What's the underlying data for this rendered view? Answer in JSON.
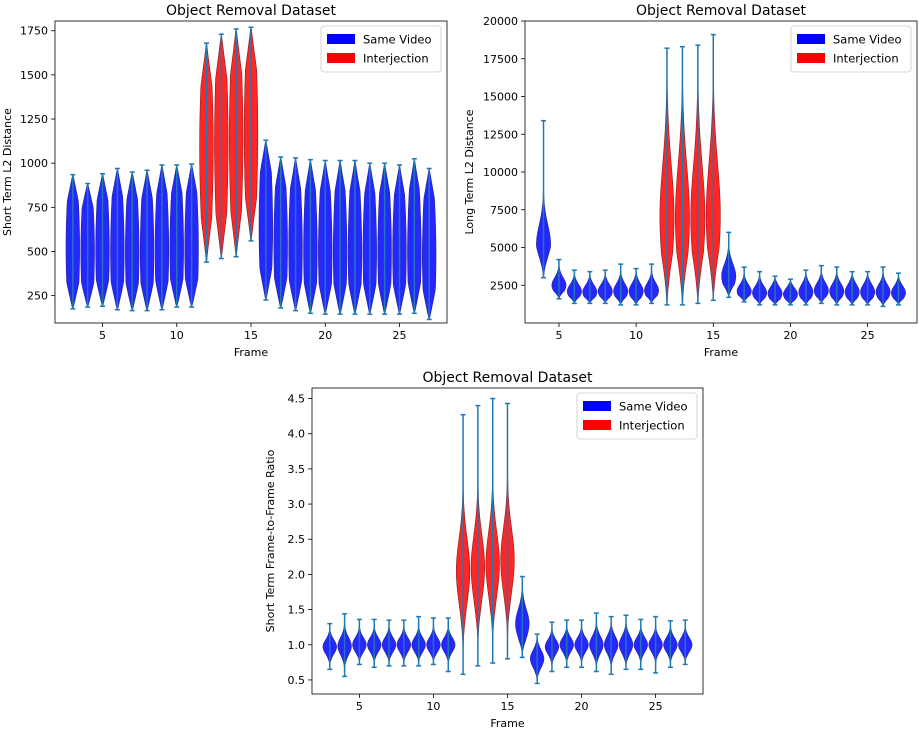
{
  "chart_data": [
    {
      "type": "violin",
      "title": "Object Removal Dataset",
      "xlabel": "Frame",
      "ylabel": "Short Term L2 Distance",
      "xlim": [
        1.8,
        28.2
      ],
      "ylim": [
        95,
        1805
      ],
      "xticks": [
        5,
        10,
        15,
        20,
        25
      ],
      "yticks": [
        250,
        500,
        750,
        1000,
        1250,
        1500,
        1750
      ],
      "legend": {
        "position": "top-right",
        "entries": [
          {
            "label": "Same Video",
            "color": "#0000ff"
          },
          {
            "label": "Interjection",
            "color": "#ff0000"
          }
        ]
      },
      "series": [
        {
          "frame": 3,
          "min": 175,
          "max": 935,
          "center": 520,
          "spread": 420,
          "color": "blue"
        },
        {
          "frame": 4,
          "min": 185,
          "max": 885,
          "center": 500,
          "spread": 400,
          "color": "blue"
        },
        {
          "frame": 5,
          "min": 190,
          "max": 940,
          "center": 510,
          "spread": 420,
          "color": "blue"
        },
        {
          "frame": 6,
          "min": 170,
          "max": 970,
          "center": 500,
          "spread": 440,
          "color": "blue"
        },
        {
          "frame": 7,
          "min": 165,
          "max": 950,
          "center": 500,
          "spread": 430,
          "color": "blue"
        },
        {
          "frame": 8,
          "min": 165,
          "max": 960,
          "center": 500,
          "spread": 430,
          "color": "blue"
        },
        {
          "frame": 9,
          "min": 170,
          "max": 990,
          "center": 510,
          "spread": 440,
          "color": "blue"
        },
        {
          "frame": 10,
          "min": 185,
          "max": 990,
          "center": 520,
          "spread": 440,
          "color": "blue"
        },
        {
          "frame": 11,
          "min": 185,
          "max": 995,
          "center": 520,
          "spread": 440,
          "color": "blue"
        },
        {
          "frame": 12,
          "min": 440,
          "max": 1680,
          "center": 1090,
          "spread": 560,
          "color": "red"
        },
        {
          "frame": 13,
          "min": 460,
          "max": 1730,
          "center": 1120,
          "spread": 600,
          "color": "red"
        },
        {
          "frame": 14,
          "min": 470,
          "max": 1760,
          "center": 1140,
          "spread": 600,
          "color": "red"
        },
        {
          "frame": 15,
          "min": 560,
          "max": 1770,
          "center": 1170,
          "spread": 580,
          "color": "red"
        },
        {
          "frame": 16,
          "min": 225,
          "max": 1130,
          "center": 640,
          "spread": 480,
          "color": "blue"
        },
        {
          "frame": 17,
          "min": 180,
          "max": 1035,
          "center": 540,
          "spread": 460,
          "color": "blue"
        },
        {
          "frame": 18,
          "min": 165,
          "max": 1030,
          "center": 520,
          "spread": 450,
          "color": "blue"
        },
        {
          "frame": 19,
          "min": 150,
          "max": 1020,
          "center": 510,
          "spread": 450,
          "color": "blue"
        },
        {
          "frame": 20,
          "min": 145,
          "max": 1015,
          "center": 500,
          "spread": 450,
          "color": "blue"
        },
        {
          "frame": 21,
          "min": 145,
          "max": 1015,
          "center": 500,
          "spread": 450,
          "color": "blue"
        },
        {
          "frame": 22,
          "min": 145,
          "max": 1015,
          "center": 500,
          "spread": 450,
          "color": "blue"
        },
        {
          "frame": 23,
          "min": 145,
          "max": 1000,
          "center": 500,
          "spread": 440,
          "color": "blue"
        },
        {
          "frame": 24,
          "min": 145,
          "max": 1000,
          "center": 500,
          "spread": 440,
          "color": "blue"
        },
        {
          "frame": 25,
          "min": 145,
          "max": 990,
          "center": 500,
          "spread": 430,
          "color": "blue"
        },
        {
          "frame": 26,
          "min": 150,
          "max": 1025,
          "center": 500,
          "spread": 450,
          "color": "blue"
        },
        {
          "frame": 27,
          "min": 115,
          "max": 970,
          "center": 480,
          "spread": 450,
          "color": "blue"
        }
      ]
    },
    {
      "type": "violin",
      "title": "Object Removal Dataset",
      "xlabel": "Frame",
      "ylabel": "Long Term L2 Distance",
      "xlim": [
        2.8,
        28.2
      ],
      "ylim": [
        0,
        20000
      ],
      "xticks": [
        5,
        10,
        15,
        20,
        25
      ],
      "yticks": [
        2500,
        5000,
        7500,
        10000,
        12500,
        15000,
        17500,
        20000
      ],
      "legend": {
        "position": "top-right",
        "entries": [
          {
            "label": "Same Video",
            "color": "#0000ff"
          },
          {
            "label": "Interjection",
            "color": "#ff0000"
          }
        ]
      },
      "series": [
        {
          "frame": 4,
          "min": 3000,
          "max": 13400,
          "center": 5200,
          "spread": 1300,
          "color": "blue"
        },
        {
          "frame": 5,
          "min": 1600,
          "max": 4200,
          "center": 2500,
          "spread": 500,
          "color": "blue"
        },
        {
          "frame": 6,
          "min": 1300,
          "max": 3500,
          "center": 2100,
          "spread": 450,
          "color": "blue"
        },
        {
          "frame": 7,
          "min": 1300,
          "max": 3400,
          "center": 2050,
          "spread": 450,
          "color": "blue"
        },
        {
          "frame": 8,
          "min": 1300,
          "max": 3500,
          "center": 2100,
          "spread": 450,
          "color": "blue"
        },
        {
          "frame": 9,
          "min": 1200,
          "max": 3900,
          "center": 2100,
          "spread": 500,
          "color": "blue"
        },
        {
          "frame": 10,
          "min": 1200,
          "max": 3600,
          "center": 2100,
          "spread": 500,
          "color": "blue"
        },
        {
          "frame": 11,
          "min": 1300,
          "max": 3900,
          "center": 2150,
          "spread": 500,
          "color": "blue"
        },
        {
          "frame": 12,
          "min": 1200,
          "max": 18200,
          "center": 7000,
          "spread": 3500,
          "color": "red"
        },
        {
          "frame": 13,
          "min": 1200,
          "max": 18300,
          "center": 7000,
          "spread": 3500,
          "color": "red"
        },
        {
          "frame": 14,
          "min": 1300,
          "max": 18400,
          "center": 7000,
          "spread": 3500,
          "color": "red"
        },
        {
          "frame": 15,
          "min": 1500,
          "max": 19100,
          "center": 7100,
          "spread": 3500,
          "color": "red"
        },
        {
          "frame": 16,
          "min": 1700,
          "max": 6000,
          "center": 3100,
          "spread": 800,
          "color": "blue"
        },
        {
          "frame": 17,
          "min": 1400,
          "max": 3700,
          "center": 2100,
          "spread": 450,
          "color": "blue"
        },
        {
          "frame": 18,
          "min": 1200,
          "max": 3400,
          "center": 2000,
          "spread": 450,
          "color": "blue"
        },
        {
          "frame": 19,
          "min": 1200,
          "max": 3100,
          "center": 1950,
          "spread": 450,
          "color": "blue"
        },
        {
          "frame": 20,
          "min": 1200,
          "max": 2900,
          "center": 1900,
          "spread": 400,
          "color": "blue"
        },
        {
          "frame": 21,
          "min": 1200,
          "max": 3500,
          "center": 2050,
          "spread": 500,
          "color": "blue"
        },
        {
          "frame": 22,
          "min": 1300,
          "max": 3800,
          "center": 2150,
          "spread": 500,
          "color": "blue"
        },
        {
          "frame": 23,
          "min": 1200,
          "max": 3700,
          "center": 2100,
          "spread": 500,
          "color": "blue"
        },
        {
          "frame": 24,
          "min": 1200,
          "max": 3400,
          "center": 2050,
          "spread": 500,
          "color": "blue"
        },
        {
          "frame": 25,
          "min": 1200,
          "max": 3400,
          "center": 2050,
          "spread": 500,
          "color": "blue"
        },
        {
          "frame": 26,
          "min": 1100,
          "max": 3700,
          "center": 2050,
          "spread": 500,
          "color": "blue"
        },
        {
          "frame": 27,
          "min": 1200,
          "max": 3300,
          "center": 2000,
          "spread": 450,
          "color": "blue"
        }
      ]
    },
    {
      "type": "violin",
      "title": "Object Removal Dataset",
      "xlabel": "Frame",
      "ylabel": "Short Term Frame-to-Frame Ratio",
      "xlim": [
        1.8,
        28.2
      ],
      "ylim": [
        0.3,
        4.65
      ],
      "xticks": [
        5,
        10,
        15,
        20,
        25
      ],
      "yticks": [
        0.5,
        1.0,
        1.5,
        2.0,
        2.5,
        3.0,
        3.5,
        4.0,
        4.5
      ],
      "legend": {
        "position": "top-right",
        "entries": [
          {
            "label": "Same Video",
            "color": "#0000ff"
          },
          {
            "label": "Interjection",
            "color": "#ff0000"
          }
        ]
      },
      "series": [
        {
          "frame": 3,
          "min": 0.65,
          "max": 1.3,
          "center": 0.97,
          "spread": 0.1,
          "color": "blue"
        },
        {
          "frame": 4,
          "min": 0.55,
          "max": 1.44,
          "center": 0.98,
          "spread": 0.12,
          "color": "blue"
        },
        {
          "frame": 5,
          "min": 0.72,
          "max": 1.36,
          "center": 1.0,
          "spread": 0.1,
          "color": "blue"
        },
        {
          "frame": 6,
          "min": 0.68,
          "max": 1.36,
          "center": 1.0,
          "spread": 0.1,
          "color": "blue"
        },
        {
          "frame": 7,
          "min": 0.7,
          "max": 1.35,
          "center": 1.0,
          "spread": 0.1,
          "color": "blue"
        },
        {
          "frame": 8,
          "min": 0.7,
          "max": 1.35,
          "center": 1.0,
          "spread": 0.1,
          "color": "blue"
        },
        {
          "frame": 9,
          "min": 0.7,
          "max": 1.4,
          "center": 1.0,
          "spread": 0.1,
          "color": "blue"
        },
        {
          "frame": 10,
          "min": 0.72,
          "max": 1.38,
          "center": 1.0,
          "spread": 0.1,
          "color": "blue"
        },
        {
          "frame": 11,
          "min": 0.62,
          "max": 1.38,
          "center": 1.0,
          "spread": 0.1,
          "color": "blue"
        },
        {
          "frame": 12,
          "min": 0.58,
          "max": 4.27,
          "center": 2.05,
          "spread": 0.45,
          "color": "red"
        },
        {
          "frame": 13,
          "min": 0.7,
          "max": 4.4,
          "center": 2.1,
          "spread": 0.45,
          "color": "red"
        },
        {
          "frame": 14,
          "min": 0.74,
          "max": 4.5,
          "center": 2.15,
          "spread": 0.45,
          "color": "red"
        },
        {
          "frame": 15,
          "min": 0.8,
          "max": 4.43,
          "center": 2.2,
          "spread": 0.45,
          "color": "red"
        },
        {
          "frame": 16,
          "min": 0.82,
          "max": 1.97,
          "center": 1.3,
          "spread": 0.2,
          "color": "blue"
        },
        {
          "frame": 17,
          "min": 0.45,
          "max": 1.15,
          "center": 0.8,
          "spread": 0.12,
          "color": "blue"
        },
        {
          "frame": 18,
          "min": 0.62,
          "max": 1.32,
          "center": 0.97,
          "spread": 0.1,
          "color": "blue"
        },
        {
          "frame": 19,
          "min": 0.68,
          "max": 1.35,
          "center": 1.0,
          "spread": 0.1,
          "color": "blue"
        },
        {
          "frame": 20,
          "min": 0.68,
          "max": 1.35,
          "center": 1.0,
          "spread": 0.1,
          "color": "blue"
        },
        {
          "frame": 21,
          "min": 0.62,
          "max": 1.45,
          "center": 1.0,
          "spread": 0.12,
          "color": "blue"
        },
        {
          "frame": 22,
          "min": 0.58,
          "max": 1.4,
          "center": 1.0,
          "spread": 0.12,
          "color": "blue"
        },
        {
          "frame": 23,
          "min": 0.65,
          "max": 1.42,
          "center": 1.0,
          "spread": 0.12,
          "color": "blue"
        },
        {
          "frame": 24,
          "min": 0.65,
          "max": 1.36,
          "center": 1.0,
          "spread": 0.1,
          "color": "blue"
        },
        {
          "frame": 25,
          "min": 0.6,
          "max": 1.4,
          "center": 1.0,
          "spread": 0.1,
          "color": "blue"
        },
        {
          "frame": 26,
          "min": 0.68,
          "max": 1.34,
          "center": 1.0,
          "spread": 0.1,
          "color": "blue"
        },
        {
          "frame": 27,
          "min": 0.72,
          "max": 1.35,
          "center": 1.0,
          "spread": 0.1,
          "color": "blue"
        }
      ]
    }
  ]
}
